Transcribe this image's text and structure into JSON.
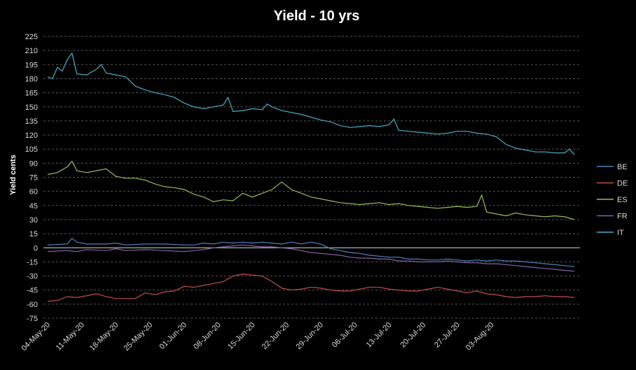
{
  "chart_data": {
    "type": "line",
    "title": "Yield - 10 yrs",
    "xlabel": "",
    "ylabel": "Yield cents",
    "ylim": [
      -75,
      225
    ],
    "yticks": [
      225,
      210,
      195,
      180,
      165,
      150,
      135,
      120,
      105,
      90,
      75,
      60,
      45,
      30,
      15,
      0,
      -15,
      -30,
      -45,
      -60,
      -75
    ],
    "xtick_labels": [
      "04-May-20",
      "11-May-20",
      "18-May-20",
      "25-May-20",
      "01-Jun-20",
      "08-Jun-20",
      "15-Jun-20",
      "22-Jun-20",
      "29-Jun-20",
      "06-Jul-20",
      "13-Jul-20",
      "20-Jul-20",
      "27-Jul-20",
      "03-Aug-20"
    ],
    "x_days_range": [
      0,
      108
    ],
    "grid": true,
    "legend_position": "right",
    "series": [
      {
        "name": "BE",
        "color": "#4f81bd",
        "points": [
          [
            0,
            3
          ],
          [
            4,
            4
          ],
          [
            5,
            10
          ],
          [
            6,
            6
          ],
          [
            8,
            4
          ],
          [
            12,
            4
          ],
          [
            14,
            5
          ],
          [
            16,
            3
          ],
          [
            20,
            4
          ],
          [
            24,
            4
          ],
          [
            28,
            3
          ],
          [
            30,
            3
          ],
          [
            32,
            5
          ],
          [
            34,
            4
          ],
          [
            36,
            6
          ],
          [
            38,
            5
          ],
          [
            40,
            6
          ],
          [
            42,
            5
          ],
          [
            44,
            6
          ],
          [
            46,
            5
          ],
          [
            48,
            4
          ],
          [
            50,
            6
          ],
          [
            52,
            4
          ],
          [
            54,
            6
          ],
          [
            56,
            4
          ],
          [
            58,
            -1
          ],
          [
            60,
            -3
          ],
          [
            62,
            -5
          ],
          [
            64,
            -6
          ],
          [
            66,
            -8
          ],
          [
            68,
            -9
          ],
          [
            70,
            -10
          ],
          [
            72,
            -10
          ],
          [
            74,
            -12
          ],
          [
            76,
            -12
          ],
          [
            78,
            -13
          ],
          [
            80,
            -13
          ],
          [
            82,
            -12
          ],
          [
            84,
            -13
          ],
          [
            86,
            -14
          ],
          [
            88,
            -13
          ],
          [
            90,
            -14
          ],
          [
            92,
            -13
          ],
          [
            94,
            -14
          ],
          [
            96,
            -14
          ],
          [
            98,
            -15
          ],
          [
            100,
            -16
          ],
          [
            102,
            -17
          ],
          [
            104,
            -18
          ],
          [
            106,
            -19
          ],
          [
            108,
            -20
          ]
        ]
      },
      {
        "name": "DE",
        "color": "#c0504d",
        "points": [
          [
            0,
            -57
          ],
          [
            2,
            -56
          ],
          [
            4,
            -52
          ],
          [
            6,
            -53
          ],
          [
            8,
            -51
          ],
          [
            10,
            -49
          ],
          [
            12,
            -52
          ],
          [
            14,
            -54
          ],
          [
            16,
            -54
          ],
          [
            18,
            -54
          ],
          [
            20,
            -48
          ],
          [
            22,
            -50
          ],
          [
            24,
            -47
          ],
          [
            26,
            -46
          ],
          [
            28,
            -41
          ],
          [
            30,
            -42
          ],
          [
            32,
            -40
          ],
          [
            34,
            -38
          ],
          [
            36,
            -36
          ],
          [
            38,
            -30
          ],
          [
            40,
            -28
          ],
          [
            42,
            -29
          ],
          [
            44,
            -30
          ],
          [
            46,
            -36
          ],
          [
            48,
            -43
          ],
          [
            50,
            -45
          ],
          [
            52,
            -44
          ],
          [
            54,
            -42
          ],
          [
            56,
            -43
          ],
          [
            58,
            -45
          ],
          [
            60,
            -46
          ],
          [
            62,
            -46
          ],
          [
            64,
            -44
          ],
          [
            66,
            -42
          ],
          [
            68,
            -42
          ],
          [
            70,
            -44
          ],
          [
            72,
            -45
          ],
          [
            74,
            -46
          ],
          [
            76,
            -46
          ],
          [
            78,
            -44
          ],
          [
            80,
            -42
          ],
          [
            82,
            -44
          ],
          [
            84,
            -46
          ],
          [
            86,
            -48
          ],
          [
            88,
            -46
          ],
          [
            90,
            -49
          ],
          [
            92,
            -50
          ],
          [
            94,
            -52
          ],
          [
            96,
            -53
          ],
          [
            98,
            -52
          ],
          [
            100,
            -52
          ],
          [
            102,
            -51
          ],
          [
            104,
            -52
          ],
          [
            106,
            -52
          ],
          [
            108,
            -53
          ]
        ]
      },
      {
        "name": "ES",
        "color": "#9bbb59",
        "points": [
          [
            0,
            78
          ],
          [
            2,
            80
          ],
          [
            4,
            86
          ],
          [
            5,
            92
          ],
          [
            6,
            82
          ],
          [
            8,
            80
          ],
          [
            10,
            82
          ],
          [
            12,
            84
          ],
          [
            14,
            76
          ],
          [
            16,
            74
          ],
          [
            18,
            74
          ],
          [
            20,
            72
          ],
          [
            22,
            68
          ],
          [
            24,
            65
          ],
          [
            26,
            64
          ],
          [
            28,
            62
          ],
          [
            30,
            57
          ],
          [
            32,
            54
          ],
          [
            34,
            49
          ],
          [
            36,
            51
          ],
          [
            38,
            50
          ],
          [
            40,
            58
          ],
          [
            42,
            54
          ],
          [
            44,
            58
          ],
          [
            46,
            62
          ],
          [
            48,
            70
          ],
          [
            50,
            62
          ],
          [
            52,
            58
          ],
          [
            54,
            54
          ],
          [
            56,
            52
          ],
          [
            58,
            50
          ],
          [
            60,
            48
          ],
          [
            62,
            47
          ],
          [
            64,
            46
          ],
          [
            66,
            47
          ],
          [
            68,
            48
          ],
          [
            70,
            46
          ],
          [
            72,
            47
          ],
          [
            74,
            45
          ],
          [
            76,
            44
          ],
          [
            78,
            43
          ],
          [
            80,
            42
          ],
          [
            82,
            43
          ],
          [
            84,
            44
          ],
          [
            86,
            43
          ],
          [
            88,
            44
          ],
          [
            89,
            56
          ],
          [
            90,
            38
          ],
          [
            92,
            36
          ],
          [
            94,
            34
          ],
          [
            96,
            37
          ],
          [
            98,
            35
          ],
          [
            100,
            34
          ],
          [
            102,
            33
          ],
          [
            104,
            34
          ],
          [
            106,
            33
          ],
          [
            108,
            30
          ]
        ]
      },
      {
        "name": "FR",
        "color": "#8064a2",
        "points": [
          [
            0,
            -4
          ],
          [
            4,
            -3
          ],
          [
            6,
            -4
          ],
          [
            8,
            -2
          ],
          [
            12,
            -3
          ],
          [
            14,
            -1
          ],
          [
            16,
            -3
          ],
          [
            20,
            -2
          ],
          [
            24,
            -3
          ],
          [
            28,
            -4
          ],
          [
            30,
            -3
          ],
          [
            32,
            -2
          ],
          [
            34,
            0
          ],
          [
            36,
            1
          ],
          [
            38,
            2
          ],
          [
            40,
            3
          ],
          [
            42,
            2
          ],
          [
            44,
            1
          ],
          [
            46,
            1
          ],
          [
            48,
            0
          ],
          [
            50,
            -1
          ],
          [
            52,
            -3
          ],
          [
            54,
            -5
          ],
          [
            56,
            -6
          ],
          [
            58,
            -7
          ],
          [
            60,
            -8
          ],
          [
            62,
            -10
          ],
          [
            64,
            -11
          ],
          [
            66,
            -11
          ],
          [
            68,
            -12
          ],
          [
            70,
            -12
          ],
          [
            72,
            -14
          ],
          [
            74,
            -14
          ],
          [
            76,
            -15
          ],
          [
            78,
            -15
          ],
          [
            80,
            -15
          ],
          [
            82,
            -14
          ],
          [
            84,
            -15
          ],
          [
            86,
            -16
          ],
          [
            88,
            -16
          ],
          [
            90,
            -17
          ],
          [
            92,
            -17
          ],
          [
            94,
            -18
          ],
          [
            96,
            -19
          ],
          [
            98,
            -20
          ],
          [
            100,
            -21
          ],
          [
            102,
            -22
          ],
          [
            104,
            -23
          ],
          [
            106,
            -24
          ],
          [
            108,
            -25
          ]
        ]
      },
      {
        "name": "IT",
        "color": "#4bacc6",
        "points": [
          [
            0,
            182
          ],
          [
            1,
            180
          ],
          [
            2,
            192
          ],
          [
            3,
            188
          ],
          [
            4,
            200
          ],
          [
            5,
            207
          ],
          [
            6,
            185
          ],
          [
            8,
            184
          ],
          [
            10,
            190
          ],
          [
            11,
            195
          ],
          [
            12,
            186
          ],
          [
            14,
            184
          ],
          [
            16,
            182
          ],
          [
            18,
            172
          ],
          [
            20,
            168
          ],
          [
            22,
            165
          ],
          [
            24,
            163
          ],
          [
            26,
            160
          ],
          [
            28,
            154
          ],
          [
            30,
            150
          ],
          [
            32,
            148
          ],
          [
            34,
            150
          ],
          [
            36,
            152
          ],
          [
            37,
            160
          ],
          [
            38,
            145
          ],
          [
            40,
            146
          ],
          [
            42,
            148
          ],
          [
            44,
            147
          ],
          [
            45,
            153
          ],
          [
            46,
            150
          ],
          [
            48,
            146
          ],
          [
            50,
            144
          ],
          [
            52,
            142
          ],
          [
            54,
            139
          ],
          [
            56,
            136
          ],
          [
            58,
            134
          ],
          [
            60,
            130
          ],
          [
            62,
            128
          ],
          [
            64,
            129
          ],
          [
            66,
            130
          ],
          [
            68,
            129
          ],
          [
            70,
            131
          ],
          [
            71,
            137
          ],
          [
            72,
            125
          ],
          [
            74,
            124
          ],
          [
            76,
            123
          ],
          [
            78,
            122
          ],
          [
            80,
            121
          ],
          [
            82,
            122
          ],
          [
            84,
            124
          ],
          [
            86,
            124
          ],
          [
            88,
            122
          ],
          [
            90,
            121
          ],
          [
            92,
            118
          ],
          [
            94,
            110
          ],
          [
            96,
            106
          ],
          [
            98,
            104
          ],
          [
            100,
            102
          ],
          [
            102,
            102
          ],
          [
            104,
            101
          ],
          [
            106,
            101
          ],
          [
            107,
            105
          ],
          [
            108,
            99
          ]
        ]
      }
    ]
  }
}
